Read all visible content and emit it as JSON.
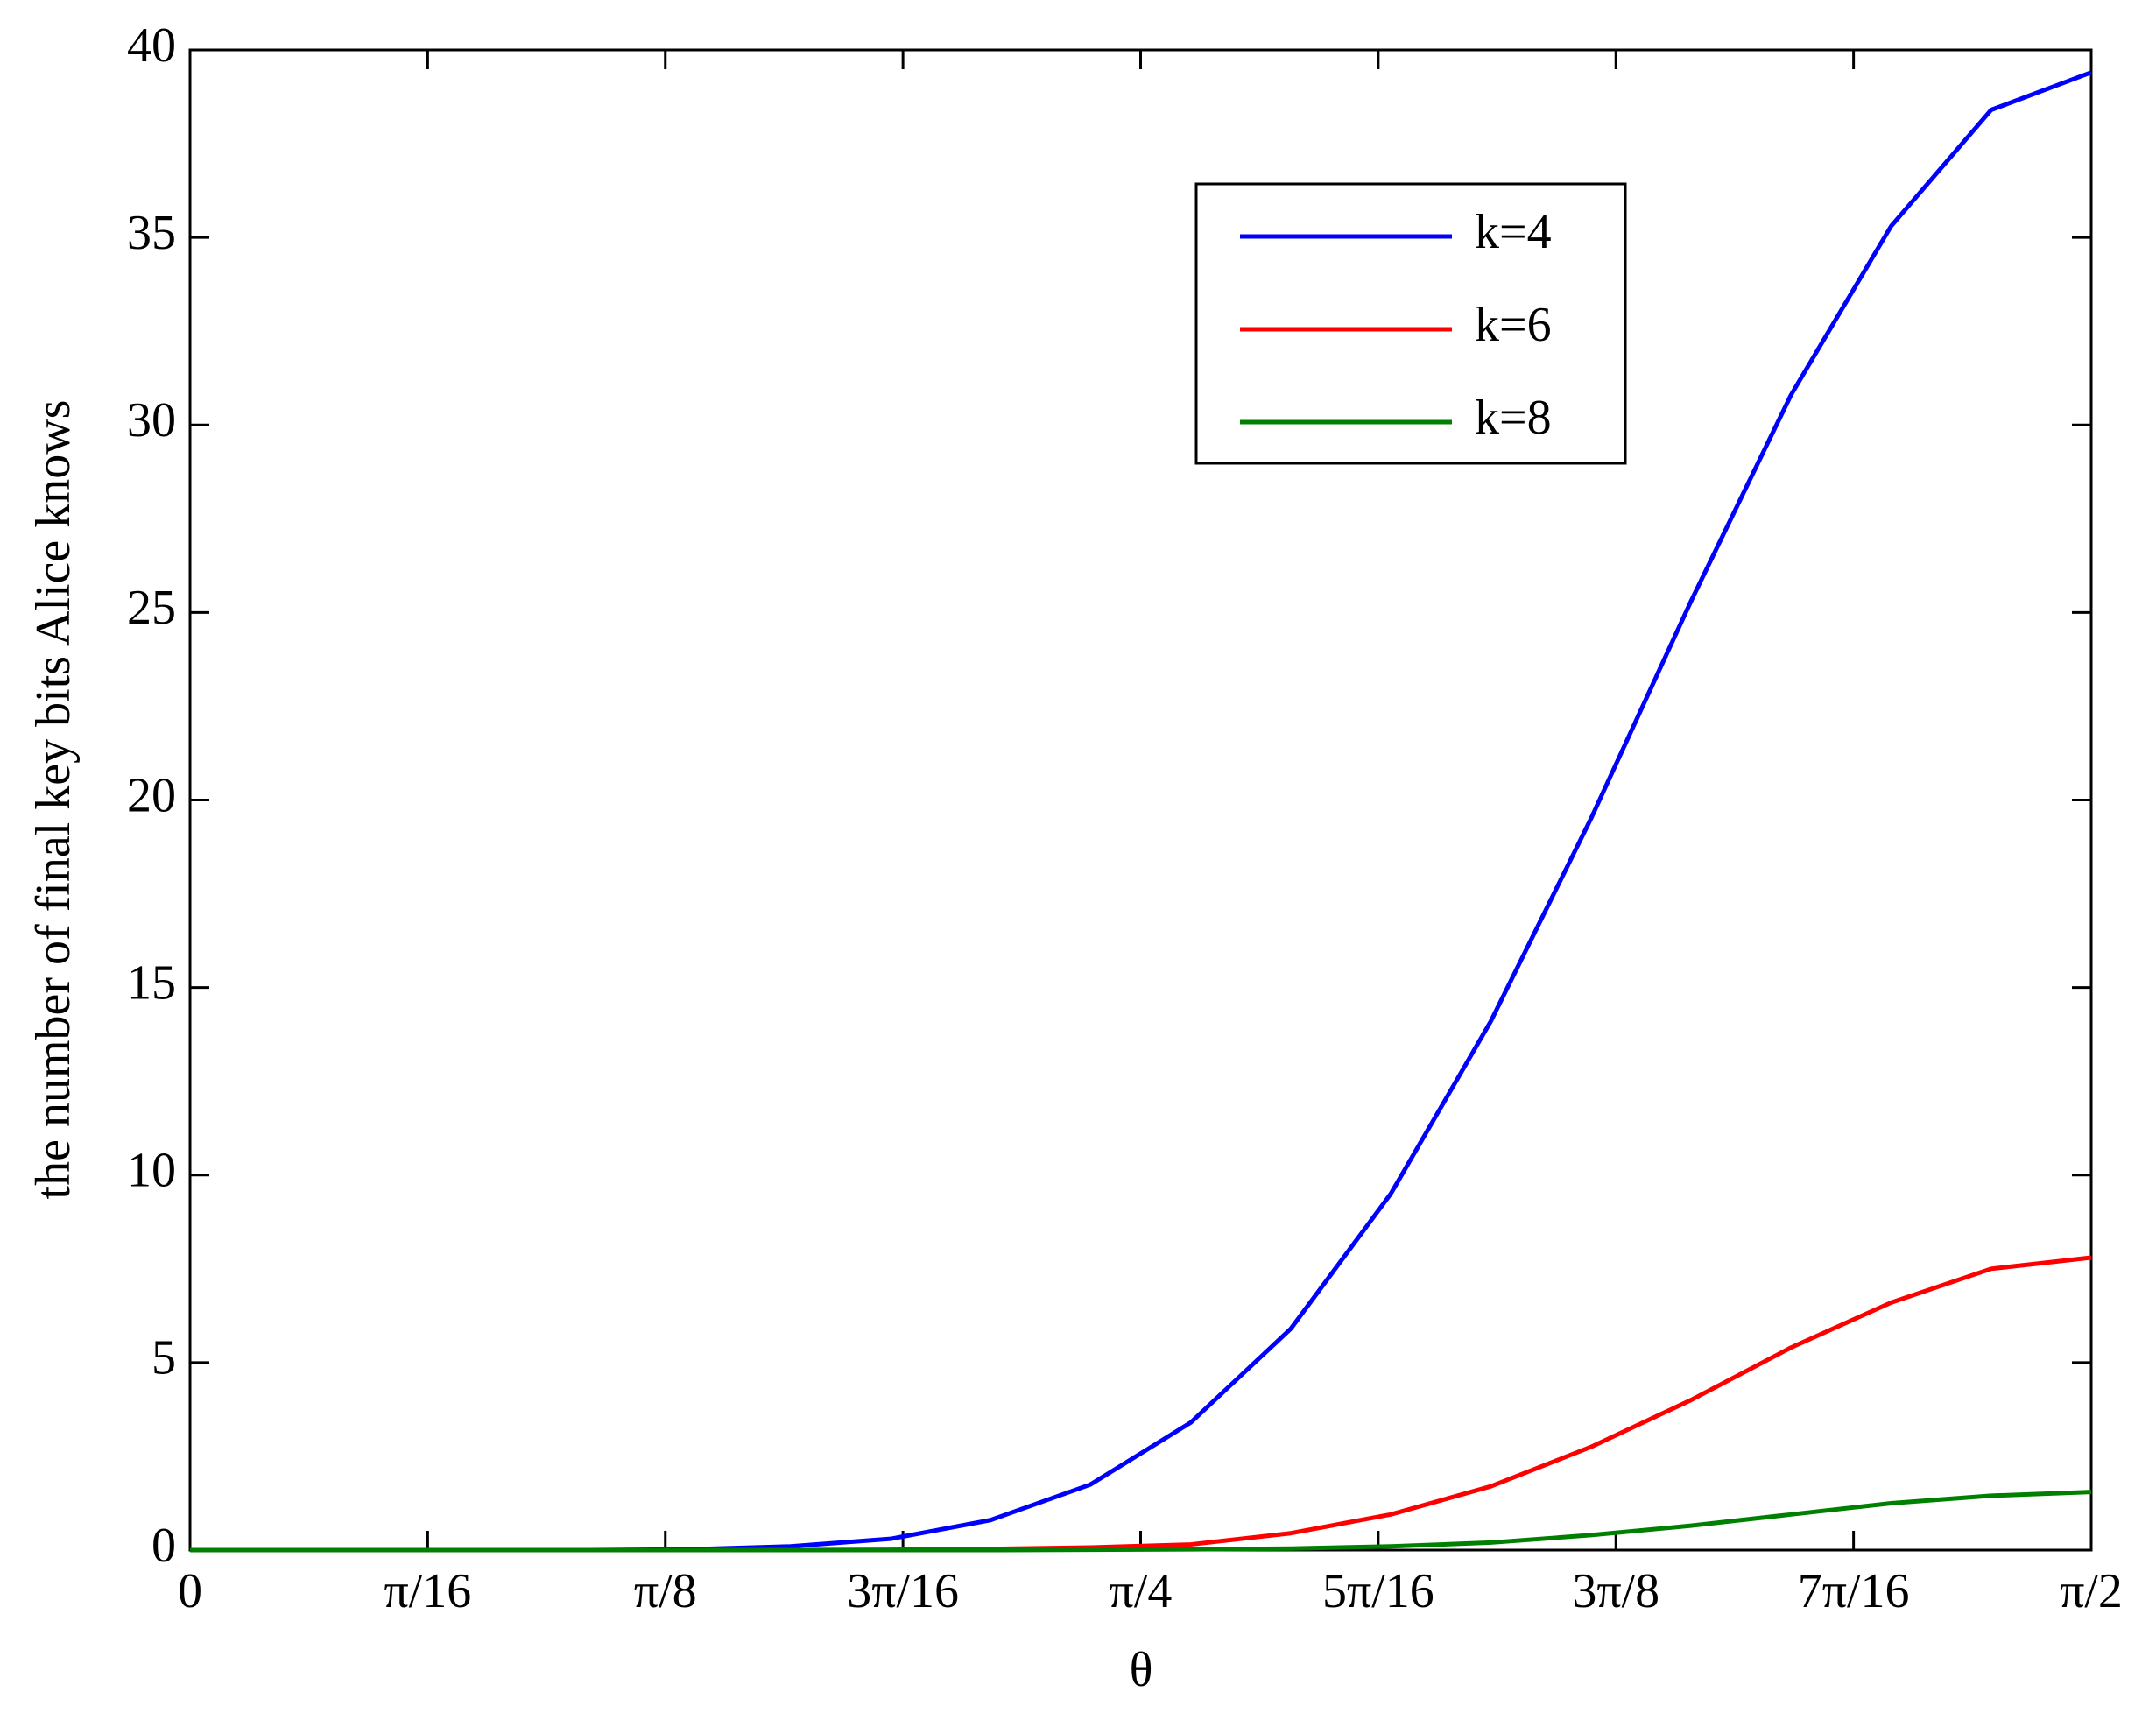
{
  "chart_data": {
    "type": "line",
    "xlabel": "θ",
    "ylabel": "the number of final key bits Alice knows",
    "x": [
      0,
      0.08267,
      0.16535,
      0.24802,
      0.3307,
      0.41337,
      0.49604,
      0.57872,
      0.66139,
      0.74407,
      0.82674,
      0.90941,
      0.99209,
      1.07476,
      1.15744,
      1.24011,
      1.32278,
      1.40546,
      1.48813,
      1.5708
    ],
    "series": [
      {
        "name": "k=4",
        "color": "#0000ff",
        "values": [
          0,
          0,
          0,
          0,
          0,
          0.02,
          0.1,
          0.3,
          0.8,
          1.75,
          3.4,
          5.9,
          9.5,
          14.1,
          19.5,
          25.3,
          30.8,
          35.3,
          38.4,
          39.4
        ]
      },
      {
        "name": "k=6",
        "color": "#ff0000",
        "values": [
          0,
          0,
          0,
          0,
          0,
          0,
          0,
          0.01,
          0.03,
          0.07,
          0.15,
          0.45,
          0.95,
          1.7,
          2.75,
          4.0,
          5.4,
          6.6,
          7.5,
          7.8
        ]
      },
      {
        "name": "k=8",
        "color": "#008000",
        "values": [
          0,
          0,
          0,
          0,
          0,
          0,
          0,
          0,
          0,
          0.01,
          0.02,
          0.04,
          0.1,
          0.2,
          0.4,
          0.65,
          0.95,
          1.25,
          1.45,
          1.55
        ]
      }
    ],
    "xlim": [
      0,
      1.5708
    ],
    "xticks": [
      0,
      {
        "value": 0.19635,
        "label": "π/16"
      },
      {
        "value": 0.3927,
        "label": "π/8"
      },
      {
        "value": 0.58905,
        "label": "3π/16"
      },
      {
        "value": 0.7854,
        "label": "π/4"
      },
      {
        "value": 0.98175,
        "label": "5π/16"
      },
      {
        "value": 1.1781,
        "label": "3π/8"
      },
      {
        "value": 1.37445,
        "label": "7π/16"
      },
      {
        "value": 1.5708,
        "label": "π/2"
      }
    ],
    "ylim": [
      0,
      40
    ],
    "yticks": [
      0,
      5,
      10,
      15,
      20,
      25,
      30,
      35,
      40
    ],
    "legend": "northeast"
  }
}
